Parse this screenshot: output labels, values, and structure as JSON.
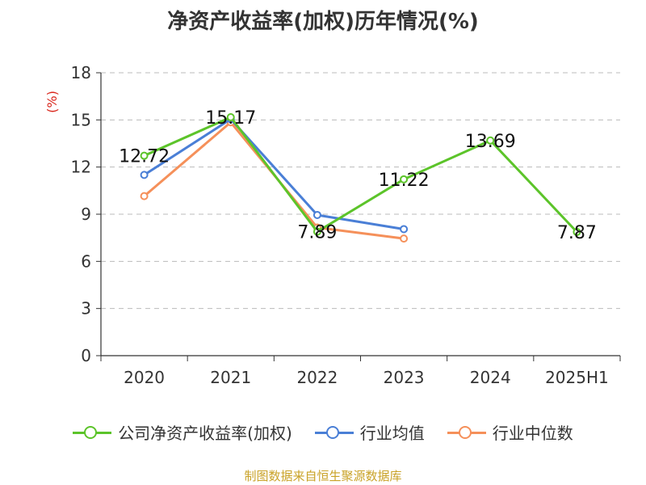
{
  "chart_data": {
    "type": "line",
    "title": "净资产收益率(加权)历年情况(%)",
    "ylabel": "(%)",
    "xlabel": "",
    "categories": [
      "2020",
      "2021",
      "2022",
      "2023",
      "2024",
      "2025H1"
    ],
    "ylim": [
      0,
      18
    ],
    "yticks": [
      0,
      3,
      6,
      9,
      12,
      15,
      18
    ],
    "grid": "horizontal-dashed",
    "legend_position": "bottom",
    "series": [
      {
        "name": "公司净资产收益率(加权)",
        "color": "#5cc42a",
        "values": [
          12.72,
          15.17,
          7.89,
          11.22,
          13.69,
          7.87
        ],
        "data_labels": [
          "12.72",
          "15.17",
          "7.89",
          "11.22",
          "13.69",
          "7.87"
        ]
      },
      {
        "name": "行业均值",
        "color": "#4a7fd6",
        "values": [
          11.5,
          15.05,
          8.95,
          8.05,
          null,
          null
        ]
      },
      {
        "name": "行业中位数",
        "color": "#f5905a",
        "values": [
          10.15,
          14.85,
          8.15,
          7.45,
          null,
          null
        ]
      }
    ]
  },
  "source": "制图数据来自恒生聚源数据库"
}
